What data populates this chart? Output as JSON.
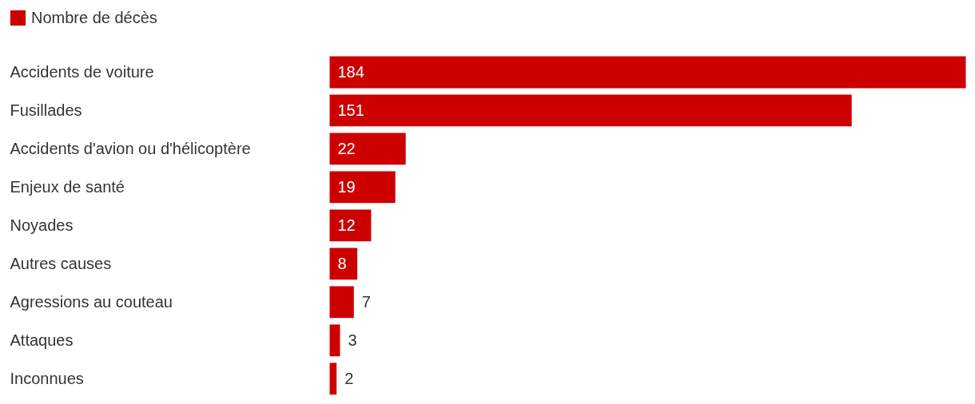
{
  "chart_data": {
    "type": "bar",
    "orientation": "horizontal",
    "data_labels": true,
    "legend": "top left",
    "categories": [
      "Accidents de voiture",
      "Fusillades",
      "Accidents d'avion ou d'hélicoptère",
      "Enjeux de santé",
      "Noyades",
      "Autres causes",
      "Agressions au couteau",
      "Attaques",
      "Inconnues"
    ],
    "series": [
      {
        "name": "Nombre de décès",
        "color": "#cc0000",
        "values": [
          184,
          151,
          22,
          19,
          12,
          8,
          7,
          3,
          2
        ]
      }
    ]
  }
}
